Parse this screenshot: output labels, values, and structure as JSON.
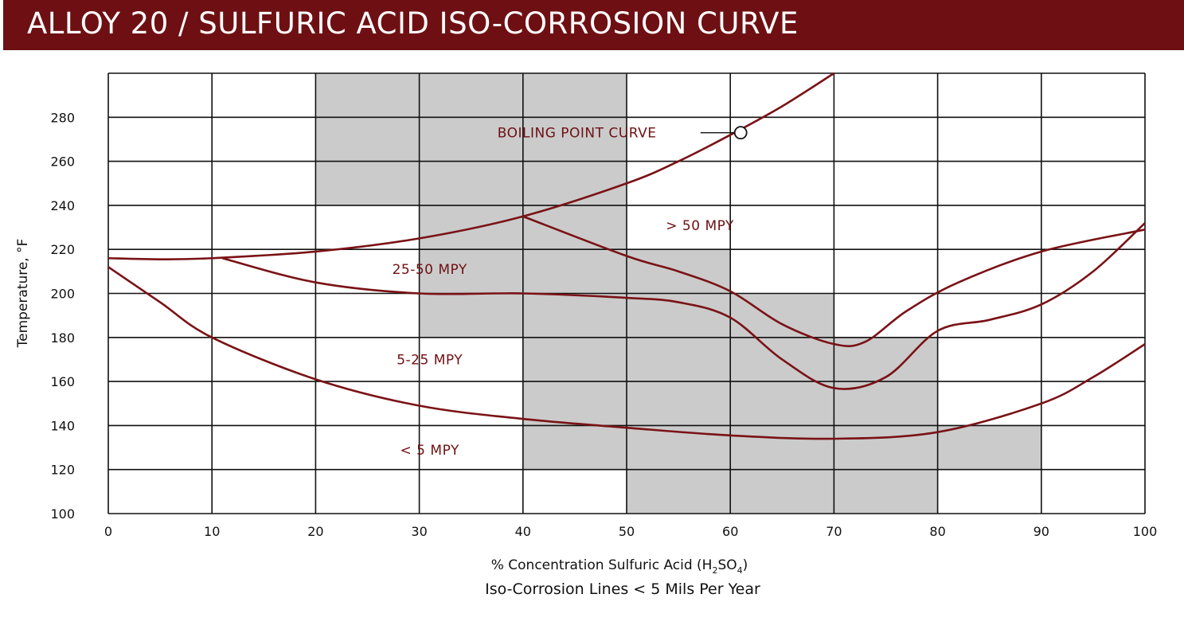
{
  "header": {
    "title": "ALLOY 20 / SULFURIC ACID ISO-CORROSION CURVE"
  },
  "colors": {
    "brand": "#6e1013",
    "curve": "#7a1216",
    "shade": "#cbcbcb"
  },
  "chart_data": {
    "type": "line",
    "title": "ALLOY 20 / SULFURIC ACID ISO-CORROSION CURVE",
    "xlabel_main": "% Concentration Sulfuric Acid (H",
    "xlabel_sub2": "2",
    "xlabel_mid": "SO",
    "xlabel_sub4": "4",
    "xlabel_end": ")",
    "subtitle": "Iso-Corrosion Lines < 5 Mils Per Year",
    "ylabel": "Temperature, °F",
    "xlim": [
      0,
      100
    ],
    "ylim": [
      100,
      300
    ],
    "xticks": [
      "0",
      "10",
      "20",
      "30",
      "40",
      "50",
      "60",
      "70",
      "80",
      "90",
      "100"
    ],
    "yticks": [
      "100",
      "120",
      "140",
      "160",
      "180",
      "200",
      "220",
      "240",
      "260",
      "280"
    ],
    "grid": true,
    "shaded_cells": [
      [
        20,
        280
      ],
      [
        30,
        280
      ],
      [
        40,
        280
      ],
      [
        20,
        260
      ],
      [
        30,
        260
      ],
      [
        40,
        260
      ],
      [
        20,
        240
      ],
      [
        30,
        240
      ],
      [
        40,
        240
      ],
      [
        30,
        220
      ],
      [
        40,
        220
      ],
      [
        30,
        200
      ],
      [
        40,
        200
      ],
      [
        50,
        200
      ],
      [
        30,
        180
      ],
      [
        40,
        180
      ],
      [
        50,
        180
      ],
      [
        60,
        180
      ],
      [
        40,
        160
      ],
      [
        50,
        160
      ],
      [
        60,
        160
      ],
      [
        70,
        160
      ],
      [
        40,
        140
      ],
      [
        50,
        140
      ],
      [
        60,
        140
      ],
      [
        70,
        140
      ],
      [
        40,
        120
      ],
      [
        50,
        120
      ],
      [
        60,
        120
      ],
      [
        70,
        120
      ],
      [
        80,
        120
      ],
      [
        50,
        100
      ],
      [
        60,
        100
      ],
      [
        70,
        100
      ]
    ],
    "series": [
      {
        "name": "BOILING POINT CURVE",
        "points": [
          [
            0,
            216
          ],
          [
            5,
            215.5
          ],
          [
            10,
            216
          ],
          [
            20,
            219
          ],
          [
            30,
            225
          ],
          [
            40,
            235
          ],
          [
            50,
            250
          ],
          [
            55,
            260
          ],
          [
            60,
            272
          ],
          [
            65,
            285
          ],
          [
            70,
            300
          ]
        ]
      },
      {
        "points": [
          [
            0,
            212
          ],
          [
            5,
            196
          ],
          [
            10,
            180
          ],
          [
            20,
            161
          ],
          [
            30,
            149
          ],
          [
            40,
            143
          ],
          [
            50,
            139
          ],
          [
            60,
            135.5
          ],
          [
            70,
            134
          ],
          [
            80,
            137
          ],
          [
            90,
            150
          ],
          [
            95,
            162
          ],
          [
            100,
            177
          ]
        ]
      },
      {
        "points": [
          [
            11,
            216
          ],
          [
            20,
            205
          ],
          [
            30,
            200
          ],
          [
            40,
            200
          ],
          [
            50,
            198
          ],
          [
            55,
            196
          ],
          [
            60,
            189
          ],
          [
            65,
            170
          ],
          [
            70,
            157
          ],
          [
            75,
            162
          ],
          [
            80,
            183
          ],
          [
            85,
            188
          ],
          [
            90,
            195
          ],
          [
            95,
            210
          ],
          [
            100,
            232
          ]
        ]
      },
      {
        "points": [
          [
            40,
            235
          ],
          [
            50,
            217
          ],
          [
            55,
            210
          ],
          [
            60,
            201
          ],
          [
            65,
            186
          ],
          [
            70,
            177
          ],
          [
            73,
            178
          ],
          [
            77,
            192
          ],
          [
            82,
            205
          ],
          [
            90,
            219
          ],
          [
            100,
            229
          ]
        ]
      }
    ],
    "marker": {
      "series": "BOILING POINT CURVE",
      "x": 61,
      "y": 273
    },
    "region_labels": [
      {
        "text": "BOILING POINT CURVE",
        "x": 37,
        "y": 273
      },
      {
        "text": "> 50 MPY",
        "x": 55,
        "y": 231
      },
      {
        "text": "25-50 MPY",
        "x": 35,
        "y": 211
      },
      {
        "text": "5-25 MPY",
        "x": 35,
        "y": 170
      },
      {
        "text": "< 5 MPY",
        "x": 35,
        "y": 129
      }
    ]
  }
}
